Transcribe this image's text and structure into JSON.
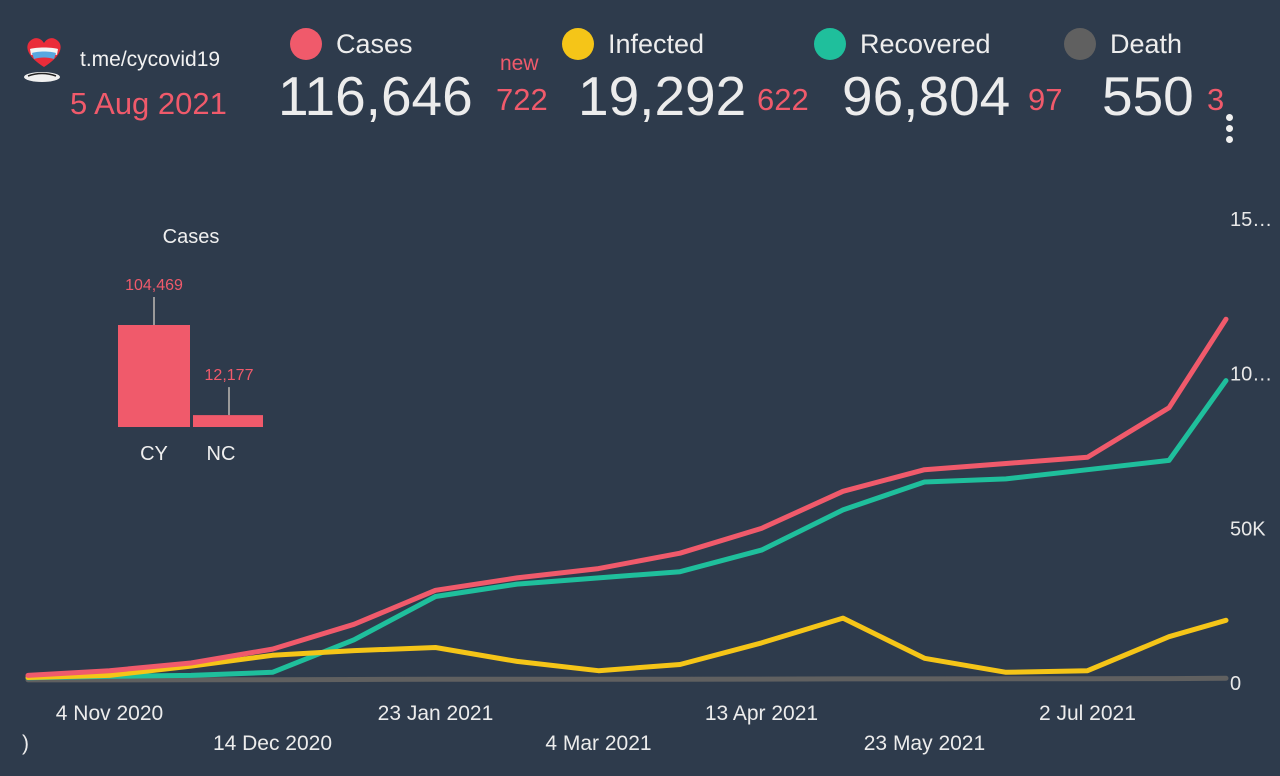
{
  "header": {
    "channel": "t.me/cycovid19",
    "date": "5 Aug 2021",
    "new_label": "new",
    "menu_icon": "more-vertical-icon",
    "logo_icon": "cyprus-heart-logo-icon"
  },
  "stats": [
    {
      "label": "Cases",
      "value": "116,646",
      "delta": "722",
      "color": "#f05a6b"
    },
    {
      "label": "Infected",
      "value": "19,292",
      "delta": "622",
      "color": "#f5c518"
    },
    {
      "label": "Recovered",
      "value": "96,804",
      "delta": "97",
      "color": "#1fbf9c"
    },
    {
      "label": "Death",
      "value": "550",
      "delta": "3",
      "color": "#606060"
    }
  ],
  "colors": {
    "background": "#2e3b4c",
    "accent_red": "#f05a6b",
    "cases": "#f05a6b",
    "infected": "#f5c518",
    "recovered": "#1fbf9c",
    "death": "#606060"
  },
  "chart_data": [
    {
      "type": "line",
      "x_tick_labels_top": [
        "4 Nov 2020",
        "23 Jan 2021",
        "13 Apr 2021",
        "2 Jul 2021"
      ],
      "x_tick_labels_bottom": [
        "14 Dec 2020",
        "4 Mar 2021",
        "23 May 2021"
      ],
      "x_cut_label": ")",
      "y_tick_labels": [
        "0",
        "50K",
        "10…",
        "15…"
      ],
      "ylim": [
        0,
        150000
      ],
      "x_dates": [
        "2020-10-15",
        "2020-11-04",
        "2020-11-24",
        "2020-12-14",
        "2021-01-03",
        "2021-01-23",
        "2021-02-12",
        "2021-03-04",
        "2021-03-24",
        "2021-04-13",
        "2021-05-03",
        "2021-05-23",
        "2021-06-12",
        "2021-07-02",
        "2021-07-22",
        "2021-08-05"
      ],
      "series": [
        {
          "name": "Cases",
          "color": "#f05a6b",
          "values": [
            1500,
            3000,
            5500,
            10000,
            18000,
            29000,
            33000,
            36000,
            41000,
            49000,
            61000,
            68000,
            70000,
            72000,
            88000,
            116646
          ]
        },
        {
          "name": "Infected",
          "color": "#f5c518",
          "values": [
            800,
            1500,
            4500,
            8000,
            9500,
            10500,
            6000,
            3000,
            5000,
            12000,
            20000,
            7000,
            2500,
            3000,
            14000,
            19292
          ]
        },
        {
          "name": "Recovered",
          "color": "#1fbf9c",
          "values": [
            700,
            1200,
            1500,
            2500,
            13000,
            27000,
            31000,
            33000,
            35000,
            42000,
            55000,
            64000,
            65000,
            68000,
            71000,
            96804
          ]
        },
        {
          "name": "Death",
          "color": "#606060",
          "values": [
            20,
            40,
            60,
            100,
            150,
            220,
            250,
            260,
            270,
            290,
            340,
            370,
            380,
            390,
            450,
            550
          ]
        }
      ]
    },
    {
      "type": "bar",
      "title": "Cases",
      "categories": [
        "CY",
        "NC"
      ],
      "values": [
        104469,
        12177
      ],
      "value_labels": [
        "104,469",
        "12,177"
      ],
      "color": "#f05a6b"
    }
  ]
}
